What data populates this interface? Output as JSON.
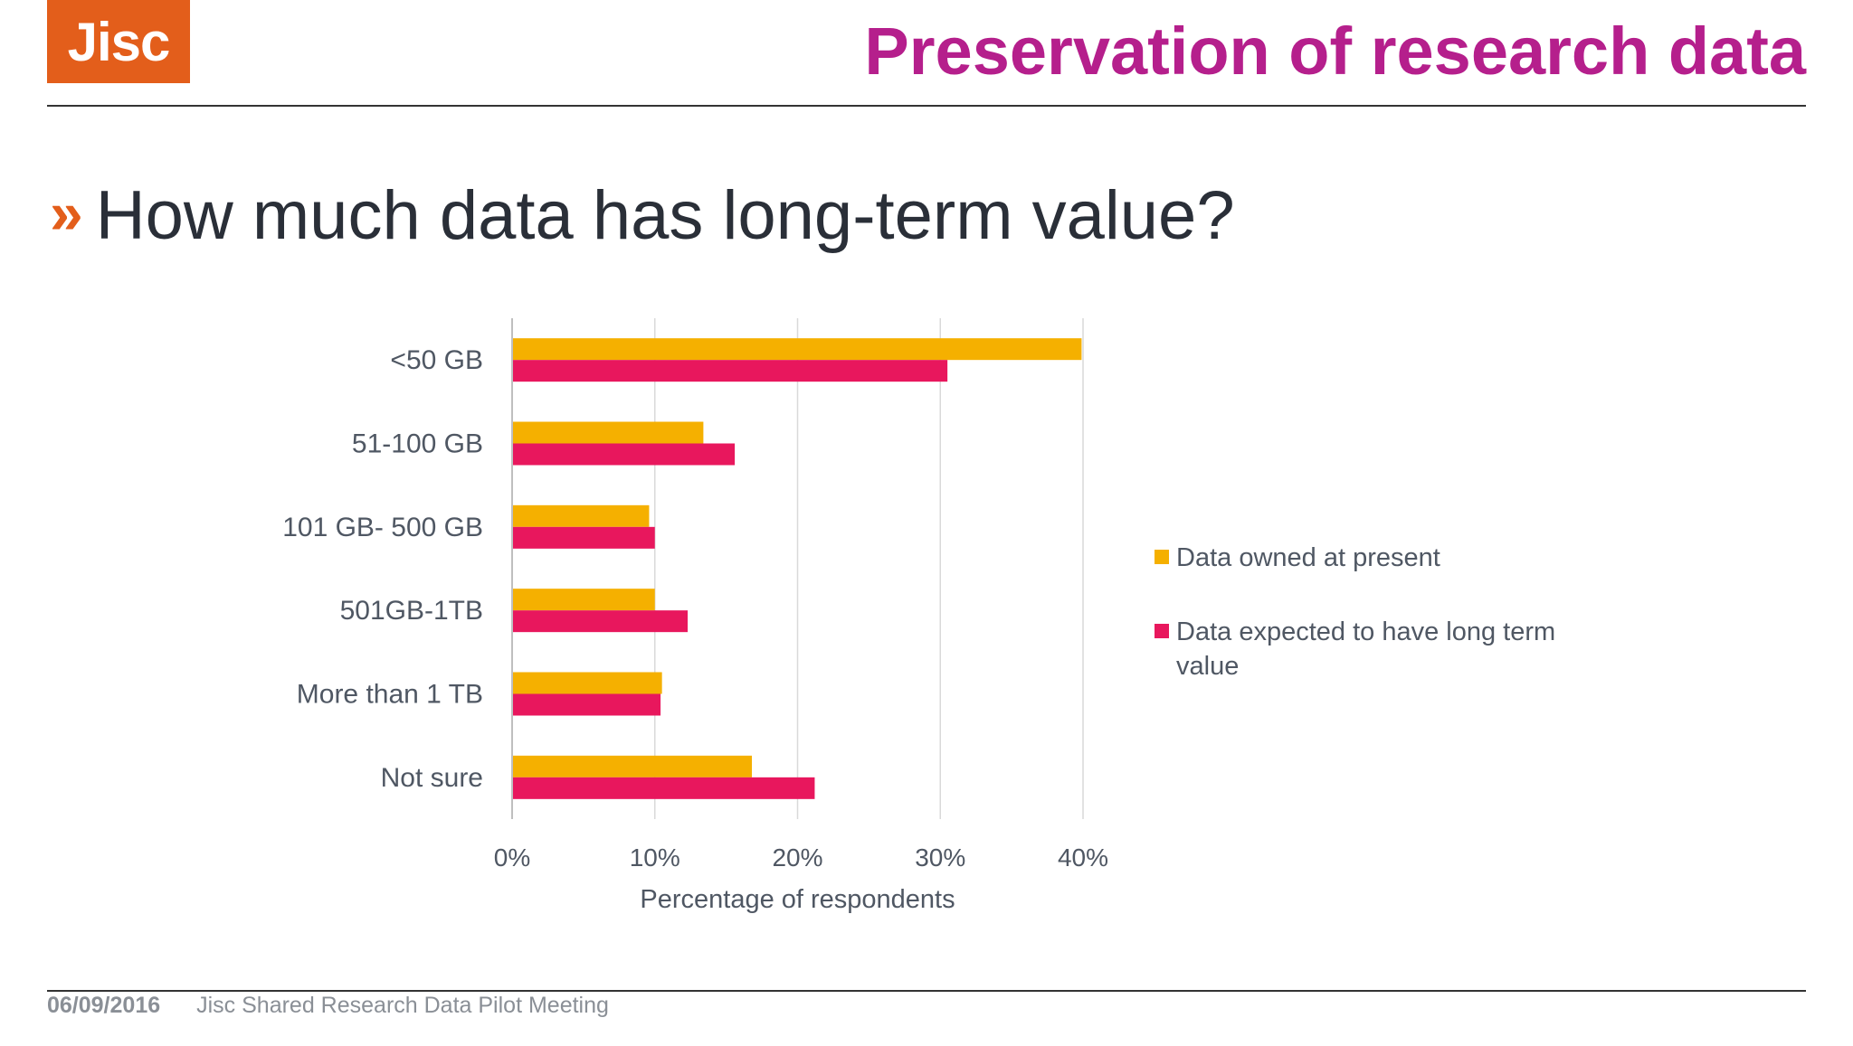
{
  "logo": {
    "text": "Jisc",
    "color": "#E35E1B"
  },
  "header": {
    "title": "Preservation of research data"
  },
  "heading": {
    "marker": "»",
    "text": "How much data has long-term value?"
  },
  "footer": {
    "date": "06/09/2016",
    "event": "Jisc Shared Research Data Pilot Meeting"
  },
  "chart_data": {
    "type": "bar",
    "orientation": "horizontal",
    "categories": [
      "<50 GB",
      "51-100 GB",
      "101 GB- 500 GB",
      "501GB-1TB",
      "More than 1 TB",
      "Not sure"
    ],
    "series": [
      {
        "name": "Data owned at present",
        "color": "#F5B000",
        "values": [
          39.9,
          13.4,
          9.6,
          10.0,
          10.5,
          16.8
        ]
      },
      {
        "name": "Data expected to have long term value",
        "color": "#E8175D",
        "values": [
          30.5,
          15.6,
          10.0,
          12.3,
          10.4,
          21.2
        ]
      }
    ],
    "xlabel": "Percentage of respondents",
    "xticks": [
      "0%",
      "10%",
      "20%",
      "30%",
      "40%"
    ],
    "xlim": [
      0,
      40
    ],
    "grid": true,
    "legend_position": "right"
  }
}
